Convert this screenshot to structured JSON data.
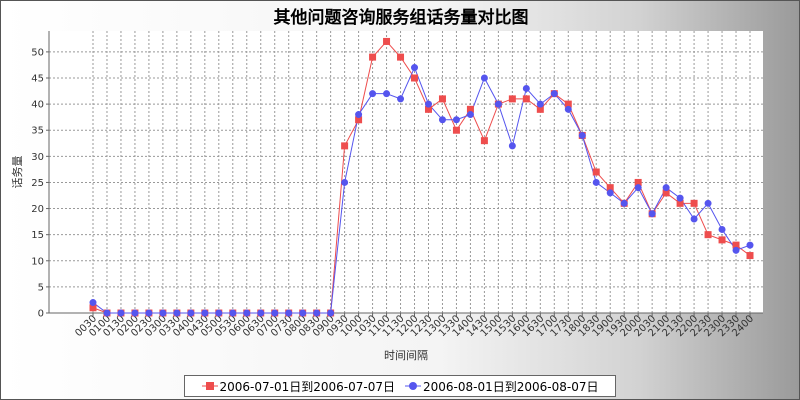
{
  "chart_data": {
    "type": "line",
    "title": "其他问题咨询服务组话务量对比图",
    "xlabel": "时间间隔",
    "ylabel": "话务量",
    "ylim": [
      0,
      54
    ],
    "yticks": [
      0,
      5,
      10,
      15,
      20,
      25,
      30,
      35,
      40,
      45,
      50
    ],
    "grid": true,
    "legend_position": "bottom",
    "categories": [
      "0030",
      "0100",
      "0130",
      "0200",
      "0230",
      "0300",
      "0330",
      "0400",
      "0430",
      "0500",
      "0530",
      "0600",
      "0630",
      "0700",
      "0730",
      "0800",
      "0830",
      "0900",
      "0930",
      "1000",
      "1030",
      "1100",
      "1130",
      "1200",
      "1230",
      "1300",
      "1330",
      "1400",
      "1430",
      "1500",
      "1530",
      "1600",
      "1630",
      "1700",
      "1730",
      "1800",
      "1830",
      "1900",
      "1930",
      "2000",
      "2030",
      "2100",
      "2130",
      "2200",
      "2230",
      "2300",
      "2330",
      "2400"
    ],
    "series": [
      {
        "name": "2006-07-01日到2006-07-07日",
        "color": "#ee4d4d",
        "marker": "square",
        "values": [
          1,
          0,
          0,
          0,
          0,
          0,
          0,
          0,
          0,
          0,
          0,
          0,
          0,
          0,
          0,
          0,
          0,
          0,
          32,
          37,
          49,
          52,
          49,
          45,
          39,
          41,
          35,
          39,
          33,
          40,
          41,
          41,
          39,
          42,
          40,
          34,
          27,
          24,
          21,
          25,
          19,
          23,
          21,
          21,
          15,
          14,
          13,
          11
        ]
      },
      {
        "name": "2006-08-01日到2006-08-07日",
        "color": "#5555ee",
        "marker": "circle",
        "values": [
          2,
          0,
          0,
          0,
          0,
          0,
          0,
          0,
          0,
          0,
          0,
          0,
          0,
          0,
          0,
          0,
          0,
          0,
          25,
          38,
          42,
          42,
          41,
          47,
          40,
          37,
          37,
          38,
          45,
          40,
          32,
          43,
          40,
          42,
          39,
          34,
          25,
          23,
          21,
          24,
          19,
          24,
          22,
          18,
          21,
          16,
          12,
          13
        ]
      }
    ]
  }
}
